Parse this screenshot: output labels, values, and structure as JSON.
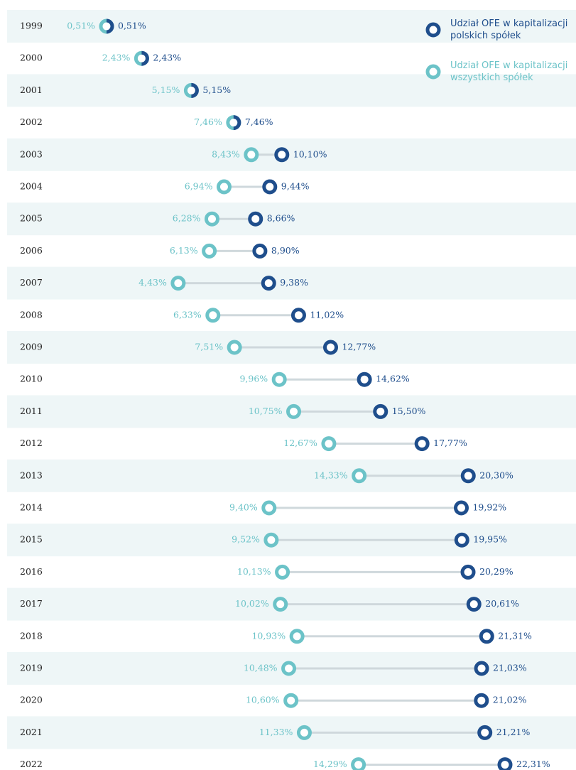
{
  "chart_data": {
    "type": "dumbbell",
    "categories": [
      "1999",
      "2000",
      "2001",
      "2002",
      "2003",
      "2004",
      "2005",
      "2006",
      "2007",
      "2008",
      "2009",
      "2010",
      "2011",
      "2012",
      "2013",
      "2014",
      "2015",
      "2016",
      "2017",
      "2018",
      "2019",
      "2020",
      "2021",
      "2022"
    ],
    "series": [
      {
        "name": "Udział OFE w kapitalizacji polskich spółek",
        "color": "#1f4e8c",
        "values": [
          0.51,
          2.43,
          5.15,
          7.46,
          10.1,
          9.44,
          8.66,
          8.9,
          9.38,
          11.02,
          12.77,
          14.62,
          15.5,
          17.77,
          20.3,
          19.92,
          19.95,
          20.29,
          20.61,
          21.31,
          21.03,
          21.02,
          21.21,
          22.31
        ],
        "value_labels": [
          "0,51%",
          "2,43%",
          "5,15%",
          "7,46%",
          "10,10%",
          "9,44%",
          "8,66%",
          "8,90%",
          "9,38%",
          "11,02%",
          "12,77%",
          "14,62%",
          "15,50%",
          "17,77%",
          "20,30%",
          "19,92%",
          "19,95%",
          "20,29%",
          "20,61%",
          "21,31%",
          "21,03%",
          "21,02%",
          "21,21%",
          "22,31%"
        ]
      },
      {
        "name": "Udział OFE w kapitalizacji wszystkich spółek",
        "color": "#6cc3c8",
        "values": [
          0.51,
          2.43,
          5.15,
          7.46,
          8.43,
          6.94,
          6.28,
          6.13,
          4.43,
          6.33,
          7.51,
          9.96,
          10.75,
          12.67,
          14.33,
          9.4,
          9.52,
          10.13,
          10.02,
          10.93,
          10.48,
          10.6,
          11.33,
          14.29
        ],
        "value_labels": [
          "0,51%",
          "2,43%",
          "5,15%",
          "7,46%",
          "8,43%",
          "6,94%",
          "6,28%",
          "6,13%",
          "4,43%",
          "6,33%",
          "7,51%",
          "9,96%",
          "10,75%",
          "12,67%",
          "14,33%",
          "9,40%",
          "9,52%",
          "10,13%",
          "10,02%",
          "10,93%",
          "10,48%",
          "10,60%",
          "11,33%",
          "14,29%"
        ]
      }
    ]
  }
}
